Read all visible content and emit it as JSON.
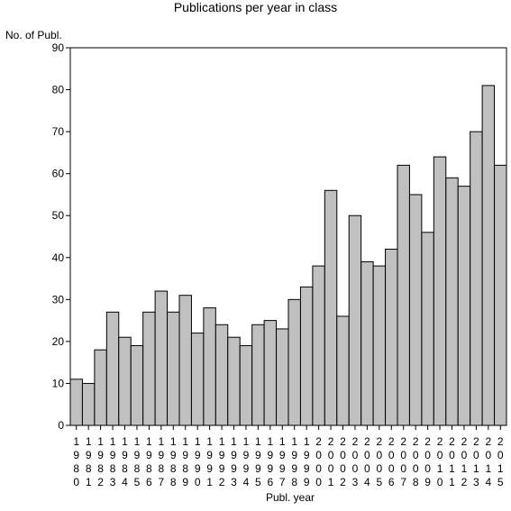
{
  "chart_data": {
    "type": "bar",
    "title": "Publications per year in class",
    "ylabel": "No. of Publ.",
    "xlabel": "Publ. year",
    "ylim": [
      0,
      90
    ],
    "yticks": [
      0,
      10,
      20,
      30,
      40,
      50,
      60,
      70,
      80,
      90
    ],
    "grid": false,
    "categories": [
      "1980",
      "1981",
      "1982",
      "1983",
      "1984",
      "1985",
      "1986",
      "1987",
      "1988",
      "1989",
      "1990",
      "1991",
      "1992",
      "1993",
      "1994",
      "1995",
      "1996",
      "1997",
      "1998",
      "1999",
      "2000",
      "2001",
      "2002",
      "2003",
      "2004",
      "2005",
      "2006",
      "2007",
      "2008",
      "2009",
      "2010",
      "2011",
      "2012",
      "2013",
      "2014",
      "2015"
    ],
    "values": [
      11,
      10,
      18,
      27,
      21,
      19,
      27,
      32,
      27,
      31,
      22,
      28,
      24,
      21,
      19,
      24,
      25,
      23,
      30,
      33,
      38,
      56,
      26,
      50,
      39,
      38,
      42,
      62,
      55,
      46,
      64,
      59,
      57,
      70,
      81,
      62
    ],
    "bar_color": "#c0c0c0",
    "bar_edge_color": "#000000"
  }
}
